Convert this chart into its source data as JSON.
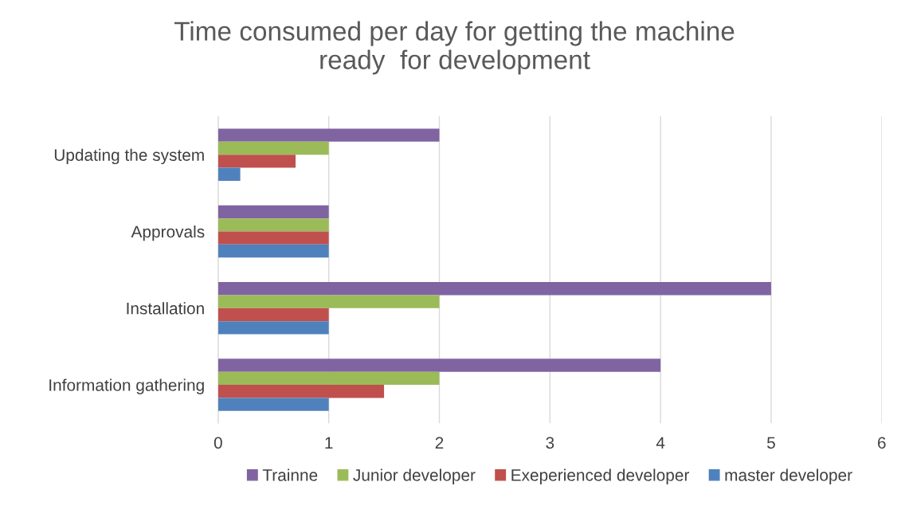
{
  "chart_data": {
    "type": "bar",
    "orientation": "horizontal",
    "title": "Time consumed per day for getting the machine\nready  for development",
    "categories": [
      "Updating the system",
      "Approvals",
      "Installation",
      "Information gathering"
    ],
    "series": [
      {
        "name": "Trainne",
        "color": "#8064a2",
        "values": [
          2,
          1,
          5,
          4
        ]
      },
      {
        "name": "Junior developer",
        "color": "#9bbb59",
        "values": [
          1,
          1,
          2,
          2
        ]
      },
      {
        "name": "Exeperienced developer",
        "color": "#c0504d",
        "values": [
          0.7,
          1,
          1,
          1.5
        ]
      },
      {
        "name": "master developer",
        "color": "#4f81bd",
        "values": [
          0.2,
          1,
          1,
          1
        ]
      }
    ],
    "xlim": [
      0,
      6
    ],
    "xticks": [
      0,
      1,
      2,
      3,
      4,
      5,
      6
    ],
    "grid": "x",
    "legend": "bottom"
  }
}
